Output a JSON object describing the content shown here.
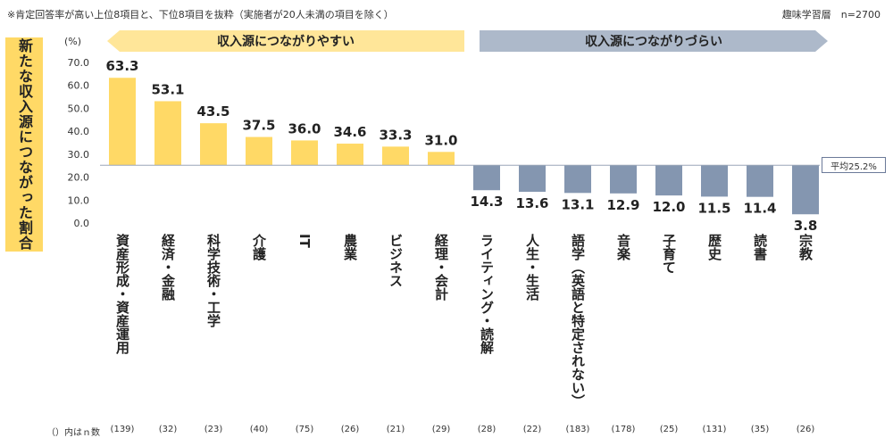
{
  "header": {
    "note": "※肯定回答率が高い上位8項目と、下位8項目を抜粋（実施者が20人未満の項目を除く）",
    "sample": "趣味学習層　n=2700"
  },
  "y_axis_title": "新たな収入源につながった割合",
  "average_label": "平均25.2%",
  "footer_label": "（）内はｎ数",
  "colors": {
    "positive": "#ffd966",
    "negative": "#8496b0",
    "arrow_positive": "#ffe699",
    "arrow_negative": "#adb9ca",
    "gridline": "#cccccc"
  },
  "chart_data": {
    "type": "bar",
    "unit": "(%)",
    "ylim": [
      0,
      70
    ],
    "yticks": [
      "0.0",
      "10.0",
      "20.0",
      "30.0",
      "40.0",
      "50.0",
      "60.0",
      "70.0"
    ],
    "baseline": 25.2,
    "groups": [
      {
        "label": "収入源につながりやすい",
        "direction": "left"
      },
      {
        "label": "収入源につながりづらい",
        "direction": "right"
      }
    ],
    "categories": [
      "資産形成・資産運用",
      "経済・金融",
      "科学技術・工学",
      "介護",
      "IT",
      "農業",
      "ビジネス",
      "経理・会計",
      "ライティング・読解",
      "人生・生活",
      "語学（英語と特定されない）",
      "音楽",
      "子育て",
      "歴史",
      "読書",
      "宗教"
    ],
    "values": [
      63.3,
      53.1,
      43.5,
      37.5,
      36.0,
      34.6,
      33.3,
      31.0,
      14.3,
      13.6,
      13.1,
      12.9,
      12.0,
      11.5,
      11.4,
      3.8
    ],
    "value_labels": [
      "63.3",
      "53.1",
      "43.5",
      "37.5",
      "36.0",
      "34.6",
      "33.3",
      "31.0",
      "14.3",
      "13.6",
      "13.1",
      "12.9",
      "12.0",
      "11.5",
      "11.4",
      "3.8"
    ],
    "n": [
      "(139)",
      "(32)",
      "(23)",
      "(40)",
      "(75)",
      "(26)",
      "(21)",
      "(29)",
      "(28)",
      "(22)",
      "(183)",
      "(178)",
      "(25)",
      "(131)",
      "(35)",
      "(26)"
    ]
  }
}
